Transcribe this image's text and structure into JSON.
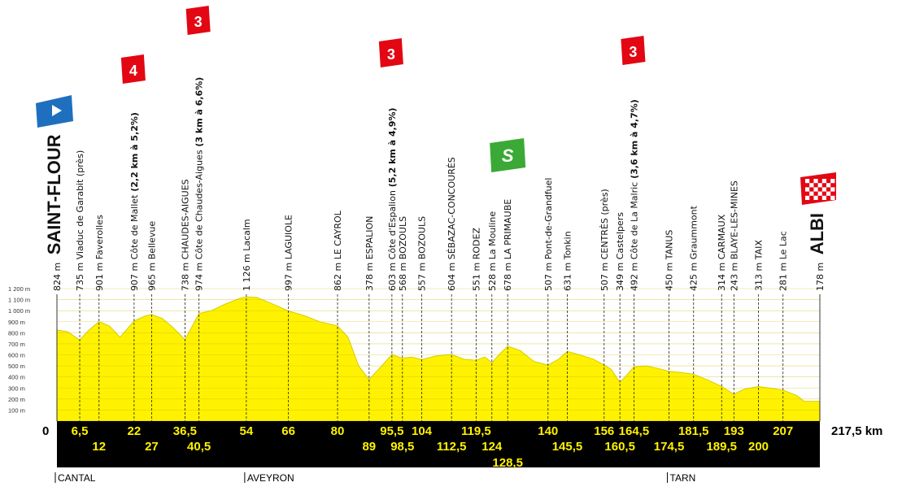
{
  "colors": {
    "profile_fill": "#fff200",
    "profile_line": "#d8cc00",
    "band": "#000000",
    "km_text": "#fff200",
    "cat_red": "#e30613",
    "start_blue": "#1f6fbf",
    "sprint_green": "#3aa935",
    "gridline": "#c9b800"
  },
  "chart_data": {
    "type": "area",
    "x_unit": "km",
    "y_unit": "m",
    "ylim": [
      0,
      1200
    ],
    "xlim": [
      0,
      217.5
    ],
    "y_ticks": [
      "100 m",
      "200 m",
      "300 m",
      "400 m",
      "500 m",
      "600 m",
      "700 m",
      "800 m",
      "900 m",
      "1 000 m",
      "1 100 m",
      "1 200 m"
    ],
    "y_tick_values": [
      100,
      200,
      300,
      400,
      500,
      600,
      700,
      800,
      900,
      1000,
      1100,
      1200
    ],
    "profile": [
      [
        0,
        824
      ],
      [
        3,
        810
      ],
      [
        6.5,
        735
      ],
      [
        9,
        820
      ],
      [
        12,
        901
      ],
      [
        15,
        860
      ],
      [
        18,
        760
      ],
      [
        22,
        907
      ],
      [
        25,
        950
      ],
      [
        27,
        965
      ],
      [
        30,
        930
      ],
      [
        33,
        850
      ],
      [
        36.5,
        738
      ],
      [
        40.5,
        974
      ],
      [
        44,
        1000
      ],
      [
        48,
        1060
      ],
      [
        52,
        1110
      ],
      [
        54,
        1126
      ],
      [
        57,
        1120
      ],
      [
        60,
        1080
      ],
      [
        63,
        1040
      ],
      [
        66,
        997
      ],
      [
        70,
        960
      ],
      [
        75,
        900
      ],
      [
        80,
        862
      ],
      [
        83,
        760
      ],
      [
        86,
        500
      ],
      [
        89,
        378
      ],
      [
        92,
        480
      ],
      [
        95.5,
        603
      ],
      [
        98.5,
        568
      ],
      [
        101,
        580
      ],
      [
        104,
        557
      ],
      [
        108,
        590
      ],
      [
        112.5,
        604
      ],
      [
        116,
        560
      ],
      [
        119.5,
        551
      ],
      [
        122,
        580
      ],
      [
        124,
        528
      ],
      [
        126,
        600
      ],
      [
        128.5,
        678
      ],
      [
        132,
        640
      ],
      [
        136,
        540
      ],
      [
        140,
        507
      ],
      [
        143,
        560
      ],
      [
        145.5,
        631
      ],
      [
        149,
        600
      ],
      [
        153,
        560
      ],
      [
        156,
        507
      ],
      [
        158,
        470
      ],
      [
        160.5,
        349
      ],
      [
        162,
        400
      ],
      [
        164.5,
        492
      ],
      [
        168,
        500
      ],
      [
        171,
        480
      ],
      [
        174.5,
        450
      ],
      [
        178,
        440
      ],
      [
        181.5,
        425
      ],
      [
        185,
        380
      ],
      [
        189.5,
        314
      ],
      [
        193,
        243
      ],
      [
        196,
        290
      ],
      [
        200,
        313
      ],
      [
        203,
        300
      ],
      [
        207,
        281
      ],
      [
        211,
        230
      ],
      [
        213,
        180
      ],
      [
        217.5,
        178
      ]
    ],
    "km_labels_top": [
      "0",
      "6,5",
      "22",
      "36,5",
      "54",
      "66",
      "80",
      "95,5",
      "104",
      "119,5",
      "140",
      "156",
      "164,5",
      "181,5",
      "193",
      "207"
    ],
    "km_values_top": [
      0,
      6.5,
      22,
      36.5,
      54,
      66,
      80,
      95.5,
      104,
      119.5,
      140,
      156,
      164.5,
      181.5,
      193,
      207
    ],
    "km_labels_bottom": [
      "12",
      "27",
      "40,5",
      "89",
      "98,5",
      "112,5",
      "124",
      "128,5",
      "145,5",
      "160,5",
      "174,5",
      "189,5",
      "200"
    ],
    "km_values_bottom": [
      12,
      27,
      40.5,
      89,
      98.5,
      112.5,
      124,
      128.5,
      145.5,
      160.5,
      174.5,
      189.5,
      200
    ],
    "total_label": "217,5 km",
    "places": [
      {
        "km": 0,
        "alt": "824 m",
        "name": "SAINT-FLOUR",
        "style": "big"
      },
      {
        "km": 6.5,
        "alt": "735 m",
        "name": "Viaduc de Garabit (près)",
        "style": "normal"
      },
      {
        "km": 12,
        "alt": "901 m",
        "name": "Faverolles",
        "style": "normal"
      },
      {
        "km": 22,
        "alt": "907 m",
        "name": "Côte de Mallet",
        "extra": "(2,2 km à 5,2%)",
        "style": "normal"
      },
      {
        "km": 27,
        "alt": "965 m",
        "name": "Bellevue",
        "style": "normal"
      },
      {
        "km": 36.5,
        "alt": "738 m",
        "name": "CHAUDES-AIGUES",
        "style": "normal"
      },
      {
        "km": 40.5,
        "alt": "974 m",
        "name": "Côte de Chaudes-Aigues",
        "extra": "(3 km à 6,6%)",
        "style": "normal"
      },
      {
        "km": 54,
        "alt": "1 126 m",
        "name": "Lacalm",
        "style": "normal"
      },
      {
        "km": 66,
        "alt": "997 m",
        "name": "LAGUIOLE",
        "style": "normal"
      },
      {
        "km": 80,
        "alt": "862 m",
        "name": "LE CAYROL",
        "style": "normal"
      },
      {
        "km": 89,
        "alt": "378 m",
        "name": "ESPALION",
        "style": "normal"
      },
      {
        "km": 95.5,
        "alt": "603 m",
        "name": "Côte d'Espalion",
        "extra": "(5,2 km à 4,9%)",
        "style": "normal"
      },
      {
        "km": 98.5,
        "alt": "568 m",
        "name": "BOZOULS",
        "style": "normal"
      },
      {
        "km": 104,
        "alt": "557 m",
        "name": "BOZOULS",
        "style": "normal"
      },
      {
        "km": 112.5,
        "alt": "604 m",
        "name": "SÉBAZAC-CONCOURÈS",
        "style": "normal"
      },
      {
        "km": 119.5,
        "alt": "551 m",
        "name": "RODEZ",
        "style": "normal"
      },
      {
        "km": 124,
        "alt": "528 m",
        "name": "La Mouline",
        "style": "normal"
      },
      {
        "km": 128.5,
        "alt": "678 m",
        "name": "LA PRIMAUBE",
        "style": "normal"
      },
      {
        "km": 140,
        "alt": "507 m",
        "name": "Pont-de-Grandfuel",
        "style": "normal"
      },
      {
        "km": 145.5,
        "alt": "631 m",
        "name": "Tonkin",
        "style": "normal"
      },
      {
        "km": 156,
        "alt": "507 m",
        "name": "CENTRÈS (près)",
        "style": "normal"
      },
      {
        "km": 160.5,
        "alt": "349 m",
        "name": "Castelpers",
        "style": "normal"
      },
      {
        "km": 164.5,
        "alt": "492 m",
        "name": "Côte de La Malric",
        "extra": "(3,6 km à 4,7%)",
        "style": "normal"
      },
      {
        "km": 174.5,
        "alt": "450 m",
        "name": "TANUS",
        "style": "normal"
      },
      {
        "km": 181.5,
        "alt": "425 m",
        "name": "Graummont",
        "style": "normal"
      },
      {
        "km": 189.5,
        "alt": "314 m",
        "name": "CARMAUX",
        "style": "normal"
      },
      {
        "km": 193,
        "alt": "243 m",
        "name": "BLAYE-LES-MINES",
        "style": "normal"
      },
      {
        "km": 200,
        "alt": "313 m",
        "name": "TAIX",
        "style": "normal"
      },
      {
        "km": 207,
        "alt": "281 m",
        "name": "Le Lac",
        "style": "normal"
      },
      {
        "km": 217.5,
        "alt": "178 m",
        "name": "ALBI",
        "style": "big"
      }
    ],
    "climb_badges": [
      {
        "km": 22,
        "category": "4"
      },
      {
        "km": 40.5,
        "category": "3"
      },
      {
        "km": 95.5,
        "category": "3"
      },
      {
        "km": 164.5,
        "category": "3"
      }
    ],
    "sprint_badge": {
      "km": 128.5,
      "label": "S"
    },
    "departments": [
      {
        "km": 0,
        "name": "CANTAL"
      },
      {
        "km": 54,
        "name": "AVEYRON"
      },
      {
        "km": 174.5,
        "name": "TARN"
      }
    ]
  }
}
